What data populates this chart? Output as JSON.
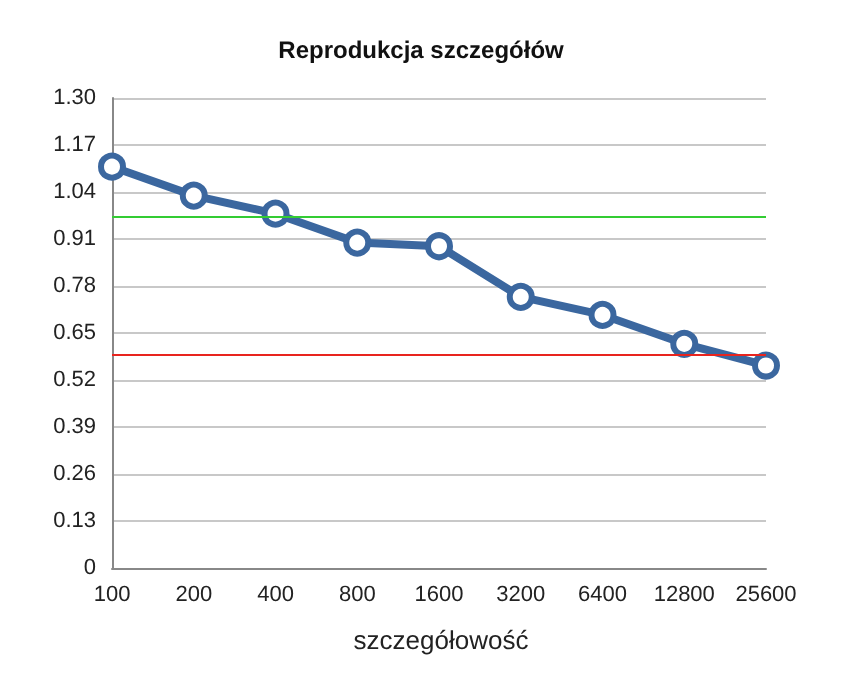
{
  "chart_data": {
    "type": "line",
    "title": "Reprodukcja szczegółów",
    "categories": [
      "100",
      "200",
      "400",
      "800",
      "1600",
      "3200",
      "6400",
      "12800",
      "25600"
    ],
    "series": [
      {
        "name": "szczegółowość",
        "color": "#3b679f",
        "values": [
          1.11,
          1.03,
          0.98,
          0.9,
          0.89,
          0.75,
          0.7,
          0.62,
          0.56
        ]
      }
    ],
    "ylim": [
      0,
      1.3
    ],
    "yticks": [
      0,
      0.13,
      0.26,
      0.39,
      0.52,
      0.65,
      0.78,
      0.91,
      1.04,
      1.17,
      {
        "value": 1.3,
        "label": "1.30"
      }
    ],
    "ref_lines": [
      {
        "axis": "y",
        "value": 0.975,
        "color": "#33cc33"
      },
      {
        "axis": "y",
        "value": 0.59,
        "color": "#e8241e"
      }
    ],
    "grid": "y",
    "legend": "bottom",
    "marker": "circle",
    "line_style": "solid"
  }
}
